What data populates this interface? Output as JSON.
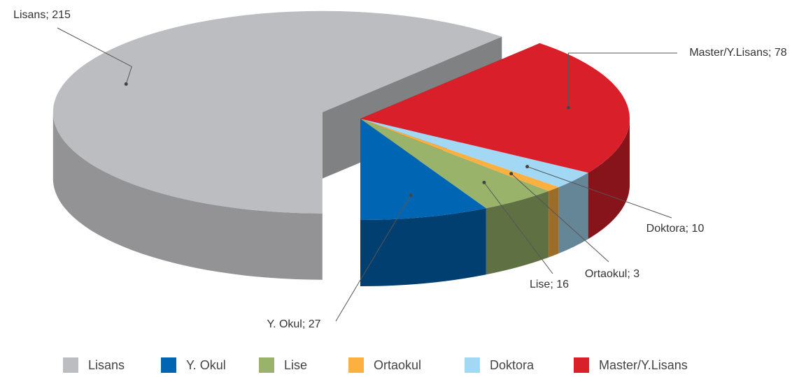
{
  "chart_data": {
    "type": "pie",
    "categories": [
      "Lisans",
      "Y. Okul",
      "Lise",
      "Ortaokul",
      "Doktora",
      "Master/Y.Lisans"
    ],
    "values": [
      215,
      27,
      16,
      3,
      10,
      78
    ],
    "value_labels": [
      "Lisans; 215",
      "Y. Okul; 27",
      "Lise; 16",
      "Ortaokul; 3",
      "Doktora; 10",
      "Master/Y.Lisans; 78"
    ],
    "colors": [
      "#bcbdc0",
      "#0066b3",
      "#99b46a",
      "#fbb040",
      "#a3d8f4",
      "#d9202a"
    ],
    "legend": "bottom"
  }
}
